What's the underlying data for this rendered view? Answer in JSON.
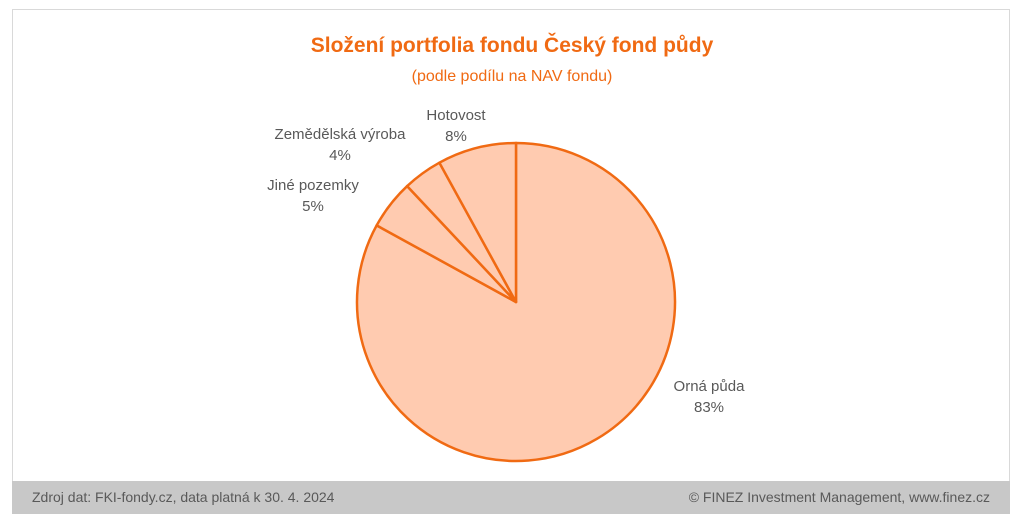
{
  "chart": {
    "title": "Složení portfolia fondu Český fond půdy",
    "subtitle": "(podle podílu na NAV fondu)"
  },
  "footer": {
    "source": "Zdroj dat: FKI-fondy.cz, data platná k 30. 4. 2024",
    "copyright": "© FINEZ Investment Management, www.finez.cz"
  },
  "colors": {
    "accent": "#f06a13",
    "slice_fill": "#ffcbb0",
    "slice_stroke": "#f06a13",
    "label_text": "#595959",
    "footer_bg": "#c8c8c8"
  },
  "chart_data": {
    "type": "pie",
    "title": "Složení portfolia fondu Český fond půdy",
    "subtitle": "(podle podílu na NAV fondu)",
    "categories": [
      "Orná půda",
      "Jiné pozemky",
      "Zemědělská výroba",
      "Hotovost"
    ],
    "values": [
      83,
      5,
      4,
      8
    ],
    "value_labels": [
      "83%",
      "5%",
      "4%",
      "8%"
    ],
    "legend": "none"
  }
}
